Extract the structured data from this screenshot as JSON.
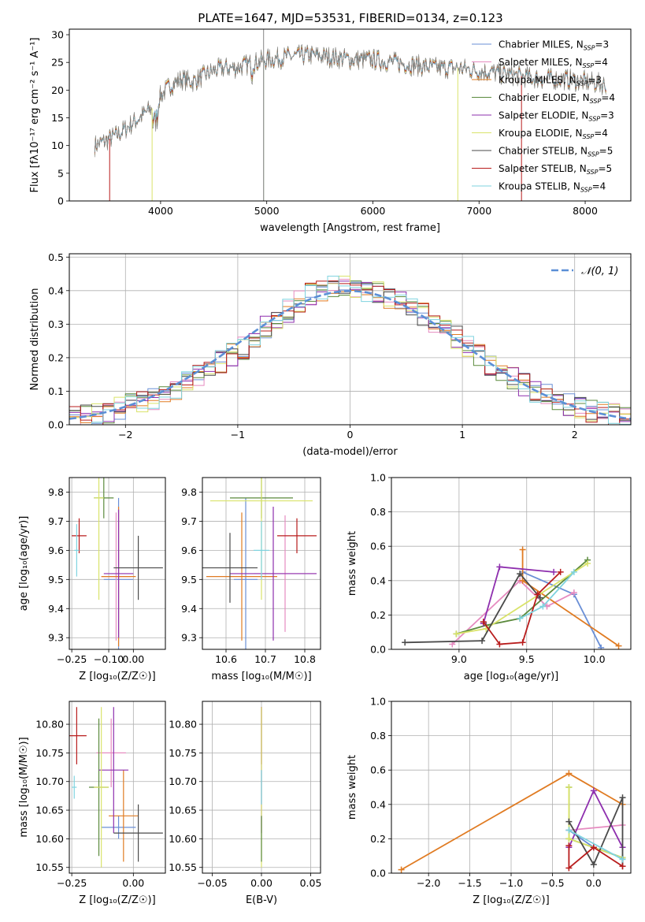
{
  "figure_title": "PLATE=1647, MJD=53531, FIBERID=0134, z=0.123",
  "colors": {
    "Chabrier MILES": "#6a8fd6",
    "Salpeter MILES": "#e68bc0",
    "Kroupa MILES": "#e07b22",
    "Chabrier ELODIE": "#5b8a3c",
    "Salpeter ELODIE": "#8e2fae",
    "Kroupa ELODIE": "#d9e36a",
    "Chabrier STELIB": "#4a4a4a",
    "Salpeter STELIB": "#b81c1c",
    "Kroupa STELIB": "#7fd3df",
    "normal_curve": "#5b8fd6"
  },
  "chart_data": [
    {
      "id": "spectrum",
      "type": "line",
      "title": "PLATE=1647, MJD=53531, FIBERID=0134, z=0.123",
      "xlabel": "wavelength [Angstrom, rest frame]",
      "ylabel": "Flux [fλ10⁻¹⁷ erg cm⁻² s⁻¹ A⁻¹]",
      "xlim": [
        3140,
        8430
      ],
      "ylim": [
        0,
        31
      ],
      "xticks": [
        4000,
        5000,
        6000,
        7000,
        8000
      ],
      "yticks": [
        0,
        5,
        10,
        15,
        20,
        25,
        30
      ],
      "grid": false,
      "legend": "top-right",
      "legend_labels": [
        "Chabrier MILES, N_SSP=3",
        "Salpeter MILES, N_SSP=4",
        "Kroupa MILES, N_SSP=3",
        "Chabrier ELODIE, N_SSP=4",
        "Salpeter ELODIE, N_SSP=3",
        "Kroupa ELODIE, N_SSP=4",
        "Chabrier STELIB, N_SSP=5",
        "Salpeter STELIB, N_SSP=5",
        "Kroupa STELIB, N_SSP=4"
      ],
      "continuum": {
        "x": [
          3380,
          3500,
          3600,
          3700,
          3800,
          3900,
          3950,
          4000,
          4100,
          4200,
          4300,
          4400,
          4500,
          4600,
          4700,
          4800,
          4900,
          5000,
          5200,
          5400,
          5600,
          5800,
          6000,
          6200,
          6400,
          6600,
          6800,
          7000,
          7200,
          7400,
          7600,
          7800,
          8000,
          8200
        ],
        "y": [
          10,
          11,
          12,
          13.5,
          15,
          16.5,
          17,
          19,
          21,
          22,
          21.5,
          22.5,
          23.5,
          24,
          24,
          24.5,
          25,
          25.5,
          26,
          26.3,
          26,
          25.5,
          25.5,
          25,
          24.5,
          24,
          24,
          23.5,
          23,
          22.5,
          22,
          22,
          21.5,
          21
        ]
      },
      "model_cutoffs": [
        {
          "series": "Salpeter STELIB",
          "x": 3520
        },
        {
          "series": "Kroupa ELODIE",
          "x": 3920
        },
        {
          "series": "Chabrier ELODIE",
          "x": 4970
        },
        {
          "series": "Kroupa ELODIE",
          "x": 6800
        },
        {
          "series": "Salpeter STELIB",
          "x": 7400
        }
      ]
    },
    {
      "id": "residuals",
      "type": "step",
      "xlabel": "(data-model)/error",
      "ylabel": "Normed distribution",
      "xlim": [
        -2.5,
        2.5
      ],
      "ylim": [
        0,
        0.51
      ],
      "xticks": [
        -2,
        -1,
        0,
        1,
        2
      ],
      "yticks": [
        0.0,
        0.1,
        0.2,
        0.3,
        0.4,
        0.5
      ],
      "grid": true,
      "legend": "top-right",
      "legend_label": "𝒩(0, 1)",
      "bin_edges": [
        -2.5,
        -2.4,
        -2.3,
        -2.2,
        -2.1,
        -2.0,
        -1.9,
        -1.8,
        -1.7,
        -1.6,
        -1.5,
        -1.4,
        -1.3,
        -1.2,
        -1.1,
        -1.0,
        -0.9,
        -0.8,
        -0.7,
        -0.6,
        -0.5,
        -0.4,
        -0.3,
        -0.2,
        -0.1,
        0.0,
        0.1,
        0.2,
        0.3,
        0.4,
        0.5,
        0.6,
        0.7,
        0.8,
        0.9,
        1.0,
        1.1,
        1.2,
        1.3,
        1.4,
        1.5,
        1.6,
        1.7,
        1.8,
        1.9,
        2.0,
        2.1,
        2.2,
        2.3,
        2.4,
        2.5
      ],
      "histogram_approx": [
        0.02,
        0.03,
        0.03,
        0.04,
        0.05,
        0.06,
        0.07,
        0.08,
        0.09,
        0.11,
        0.13,
        0.15,
        0.17,
        0.19,
        0.21,
        0.23,
        0.26,
        0.29,
        0.31,
        0.34,
        0.37,
        0.39,
        0.4,
        0.41,
        0.42,
        0.41,
        0.4,
        0.4,
        0.38,
        0.37,
        0.35,
        0.33,
        0.31,
        0.28,
        0.26,
        0.23,
        0.21,
        0.18,
        0.16,
        0.14,
        0.12,
        0.1,
        0.09,
        0.08,
        0.06,
        0.05,
        0.04,
        0.04,
        0.03,
        0.02
      ]
    },
    {
      "id": "age_vs_Z",
      "type": "errorbar",
      "xlabel": "Z [log₁₀(Z/Z☉)]",
      "ylabel": "age  [log₁₀(age/yr)]",
      "xlim": [
        -0.26,
        0.13
      ],
      "ylim": [
        9.26,
        9.85
      ],
      "xticks": [
        -0.25,
        -0.1,
        0.0
      ],
      "xticklabels": [
        "−0.25",
        "−0.10",
        "0.00"
      ],
      "yticks": [
        9.3,
        9.4,
        9.5,
        9.6,
        9.7,
        9.8
      ],
      "grid": true,
      "points": [
        {
          "series": "Chabrier MILES",
          "x": -0.06,
          "xerr": 0.06,
          "y": 9.5,
          "yerr": 0.28
        },
        {
          "series": "Salpeter MILES",
          "x": -0.07,
          "xerr": 0.06,
          "y": 9.51,
          "yerr": 0.22
        },
        {
          "series": "Kroupa MILES",
          "x": -0.06,
          "xerr": 0.07,
          "y": 9.51,
          "yerr": 0.24
        },
        {
          "series": "Chabrier ELODIE",
          "x": -0.12,
          "xerr": 0.04,
          "y": 9.78,
          "yerr": 0.07
        },
        {
          "series": "Salpeter ELODIE",
          "x": -0.06,
          "xerr": 0.06,
          "y": 9.52,
          "yerr": 0.22
        },
        {
          "series": "Kroupa ELODIE",
          "x": -0.14,
          "xerr": 0.02,
          "y": 9.78,
          "yerr": 0.35
        },
        {
          "series": "Chabrier STELIB",
          "x": 0.02,
          "xerr": 0.1,
          "y": 9.54,
          "yerr": 0.11
        },
        {
          "series": "Salpeter STELIB",
          "x": -0.22,
          "xerr": 0.03,
          "y": 9.65,
          "yerr": 0.06
        },
        {
          "series": "Kroupa STELIB",
          "x": -0.23,
          "xerr": 0.01,
          "y": 9.6,
          "yerr": 0.09
        }
      ]
    },
    {
      "id": "age_vs_mass",
      "type": "errorbar",
      "xlabel": "mass [log₁₀(M/M☉)]",
      "ylim": [
        9.26,
        9.85
      ],
      "xlim": [
        10.54,
        10.84
      ],
      "xticks": [
        10.6,
        10.7,
        10.8
      ],
      "yticks": [
        9.3,
        9.4,
        9.5,
        9.6,
        9.7,
        9.8
      ],
      "grid": true,
      "points": [
        {
          "series": "Chabrier MILES",
          "x": 10.65,
          "xerr": 0.03,
          "y": 9.5,
          "yerr": 0.28
        },
        {
          "series": "Salpeter MILES",
          "x": 10.75,
          "xerr": 0.08,
          "y": 9.52,
          "yerr": 0.2
        },
        {
          "series": "Kroupa MILES",
          "x": 10.64,
          "xerr": 0.09,
          "y": 9.51,
          "yerr": 0.22
        },
        {
          "series": "Chabrier ELODIE",
          "x": 10.69,
          "xerr": 0.08,
          "y": 9.78,
          "yerr": 0.07
        },
        {
          "series": "Salpeter ELODIE",
          "x": 10.72,
          "xerr": 0.11,
          "y": 9.52,
          "yerr": 0.23
        },
        {
          "series": "Kroupa ELODIE",
          "x": 10.69,
          "xerr": 0.13,
          "y": 9.77,
          "yerr": 0.34
        },
        {
          "series": "Chabrier STELIB",
          "x": 10.61,
          "xerr": 0.07,
          "y": 9.54,
          "yerr": 0.12
        },
        {
          "series": "Salpeter STELIB",
          "x": 10.78,
          "xerr": 0.05,
          "y": 9.65,
          "yerr": 0.06
        },
        {
          "series": "Kroupa STELIB",
          "x": 10.69,
          "xerr": 0.02,
          "y": 9.6,
          "yerr": 0.1
        }
      ]
    },
    {
      "id": "weight_vs_age",
      "type": "line",
      "xlabel": "age  [log₁₀(age/yr)]",
      "ylabel": "mass weight",
      "xlim": [
        8.5,
        10.27
      ],
      "ylim": [
        0,
        1
      ],
      "xticks": [
        9.0,
        9.5,
        10.0
      ],
      "yticks": [
        0.0,
        0.2,
        0.4,
        0.6,
        0.8,
        1.0
      ],
      "grid": true,
      "series": [
        {
          "name": "Chabrier MILES",
          "x": [
            9.47,
            9.85,
            10.05
          ],
          "y": [
            0.45,
            0.32,
            0.01
          ]
        },
        {
          "name": "Salpeter MILES",
          "x": [
            8.95,
            9.45,
            9.65,
            9.85
          ],
          "y": [
            0.03,
            0.4,
            0.25,
            0.33
          ]
        },
        {
          "name": "Kroupa MILES",
          "x": [
            9.47,
            9.47,
            10.18
          ],
          "y": [
            0.58,
            0.4,
            0.02
          ]
        },
        {
          "name": "Chabrier ELODIE",
          "x": [
            8.98,
            9.2,
            9.45,
            9.95
          ],
          "y": [
            0.09,
            0.14,
            0.18,
            0.52
          ]
        },
        {
          "name": "Salpeter ELODIE",
          "x": [
            9.18,
            9.3,
            9.7
          ],
          "y": [
            0.15,
            0.48,
            0.45
          ]
        },
        {
          "name": "Kroupa ELODIE",
          "x": [
            8.98,
            9.2,
            9.95
          ],
          "y": [
            0.09,
            0.12,
            0.5
          ]
        },
        {
          "name": "Chabrier STELIB",
          "x": [
            8.6,
            9.17,
            9.45,
            9.6
          ],
          "y": [
            0.04,
            0.05,
            0.44,
            0.3
          ]
        },
        {
          "name": "Salpeter STELIB",
          "x": [
            9.18,
            9.3,
            9.47,
            9.58,
            9.75
          ],
          "y": [
            0.16,
            0.03,
            0.04,
            0.32,
            0.45
          ]
        },
        {
          "name": "Kroupa STELIB",
          "x": [
            9.45,
            9.62,
            9.85
          ],
          "y": [
            0.18,
            0.25,
            0.45
          ]
        }
      ]
    },
    {
      "id": "mass_vs_Z",
      "type": "errorbar",
      "xlabel": "Z [log₁₀(Z/Z☉)]",
      "ylabel": "mass [log₁₀(M/M☉)]",
      "xlim": [
        -0.26,
        0.13
      ],
      "ylim": [
        10.54,
        10.84
      ],
      "xticks": [
        -0.25,
        0.0
      ],
      "xticklabels": [
        "−0.25",
        "0.00"
      ],
      "yticks": [
        10.55,
        10.6,
        10.65,
        10.7,
        10.75,
        10.8
      ],
      "grid": true,
      "points": [
        {
          "series": "Chabrier MILES",
          "x": -0.06,
          "xerr": 0.07,
          "y": 10.62,
          "yerr": 0.02
        },
        {
          "series": "Salpeter MILES",
          "x": -0.09,
          "xerr": 0.06,
          "y": 10.75,
          "yerr": 0.06
        },
        {
          "series": "Kroupa MILES",
          "x": -0.04,
          "xerr": 0.06,
          "y": 10.64,
          "yerr": 0.08
        },
        {
          "series": "Chabrier ELODIE",
          "x": -0.14,
          "xerr": 0.04,
          "y": 10.69,
          "yerr": 0.12
        },
        {
          "series": "Salpeter ELODIE",
          "x": -0.08,
          "xerr": 0.06,
          "y": 10.72,
          "yerr": 0.11
        },
        {
          "series": "Kroupa ELODIE",
          "x": -0.13,
          "xerr": 0.03,
          "y": 10.69,
          "yerr": 0.14
        },
        {
          "series": "Chabrier STELIB",
          "x": 0.02,
          "xerr": 0.1,
          "y": 10.61,
          "yerr": 0.05
        },
        {
          "series": "Salpeter STELIB",
          "x": -0.23,
          "xerr": 0.04,
          "y": 10.78,
          "yerr": 0.05
        },
        {
          "series": "Kroupa STELIB",
          "x": -0.24,
          "xerr": 0.01,
          "y": 10.69,
          "yerr": 0.02
        }
      ]
    },
    {
      "id": "mass_vs_EBV",
      "type": "errorbar",
      "xlabel": "E(B-V)",
      "xlim": [
        -0.06,
        0.06
      ],
      "ylim": [
        10.54,
        10.84
      ],
      "xticks": [
        -0.05,
        0.0,
        0.05
      ],
      "xticklabels": [
        "−0.05",
        "0.00",
        "0.05"
      ],
      "yticks": [
        10.55,
        10.6,
        10.65,
        10.7,
        10.75,
        10.8
      ],
      "grid": true,
      "points": [
        {
          "series": "Salpeter STELIB",
          "x": 0.0,
          "xerr": 0,
          "y": 10.78,
          "yerr": 0.05
        },
        {
          "series": "Salpeter ELODIE",
          "x": 0.0,
          "xerr": 0,
          "y": 10.72,
          "yerr": 0.11
        },
        {
          "series": "Kroupa ELODIE",
          "x": 0.0,
          "xerr": 0,
          "y": 10.69,
          "yerr": 0.14
        },
        {
          "series": "Kroupa STELIB",
          "x": 0.0,
          "xerr": 0,
          "y": 10.69,
          "yerr": 0.03
        },
        {
          "series": "Chabrier ELODIE",
          "x": 0.0,
          "xerr": 0,
          "y": 10.6,
          "yerr": 0.04
        }
      ]
    },
    {
      "id": "weight_vs_Z",
      "type": "line",
      "xlabel": "Z [log₁₀(Z/Z☉)]",
      "ylabel": "mass weight",
      "xlim": [
        -2.45,
        0.45
      ],
      "ylim": [
        0,
        1
      ],
      "xticks": [
        -2.0,
        -1.5,
        -1.0,
        -0.5,
        0.0
      ],
      "xticklabels": [
        "−2.0",
        "−1.5",
        "−1.0",
        "−0.5",
        "0.0"
      ],
      "yticks": [
        0.0,
        0.2,
        0.4,
        0.6,
        0.8,
        1.0
      ],
      "grid": true,
      "series": [
        {
          "name": "Chabrier MILES",
          "x": [
            -0.3,
            0.0,
            0.35
          ],
          "y": [
            0.25,
            0.15,
            0.09
          ]
        },
        {
          "name": "Salpeter MILES",
          "x": [
            -0.3,
            0.35
          ],
          "y": [
            0.25,
            0.28
          ]
        },
        {
          "name": "Kroupa MILES",
          "x": [
            -2.33,
            -0.3,
            0.35
          ],
          "y": [
            0.02,
            0.58,
            0.4
          ]
        },
        {
          "name": "Chabrier ELODIE",
          "x": [
            -0.3,
            -0.3,
            0.35
          ],
          "y": [
            0.5,
            0.2,
            0.09
          ]
        },
        {
          "name": "Salpeter ELODIE",
          "x": [
            -0.3,
            0.0,
            0.35
          ],
          "y": [
            0.15,
            0.48,
            0.15
          ]
        },
        {
          "name": "Kroupa ELODIE",
          "x": [
            -0.3,
            -0.3,
            0.35
          ],
          "y": [
            0.5,
            0.2,
            0.09
          ]
        },
        {
          "name": "Chabrier STELIB",
          "x": [
            -0.3,
            0.0,
            0.35,
            0.35
          ],
          "y": [
            0.3,
            0.05,
            0.44,
            0.04
          ]
        },
        {
          "name": "Salpeter STELIB",
          "x": [
            -0.3,
            -0.3,
            0.0,
            0.35
          ],
          "y": [
            0.16,
            0.03,
            0.15,
            0.04
          ]
        },
        {
          "name": "Kroupa STELIB",
          "x": [
            -0.3,
            0.35
          ],
          "y": [
            0.25,
            0.08
          ]
        }
      ]
    }
  ]
}
